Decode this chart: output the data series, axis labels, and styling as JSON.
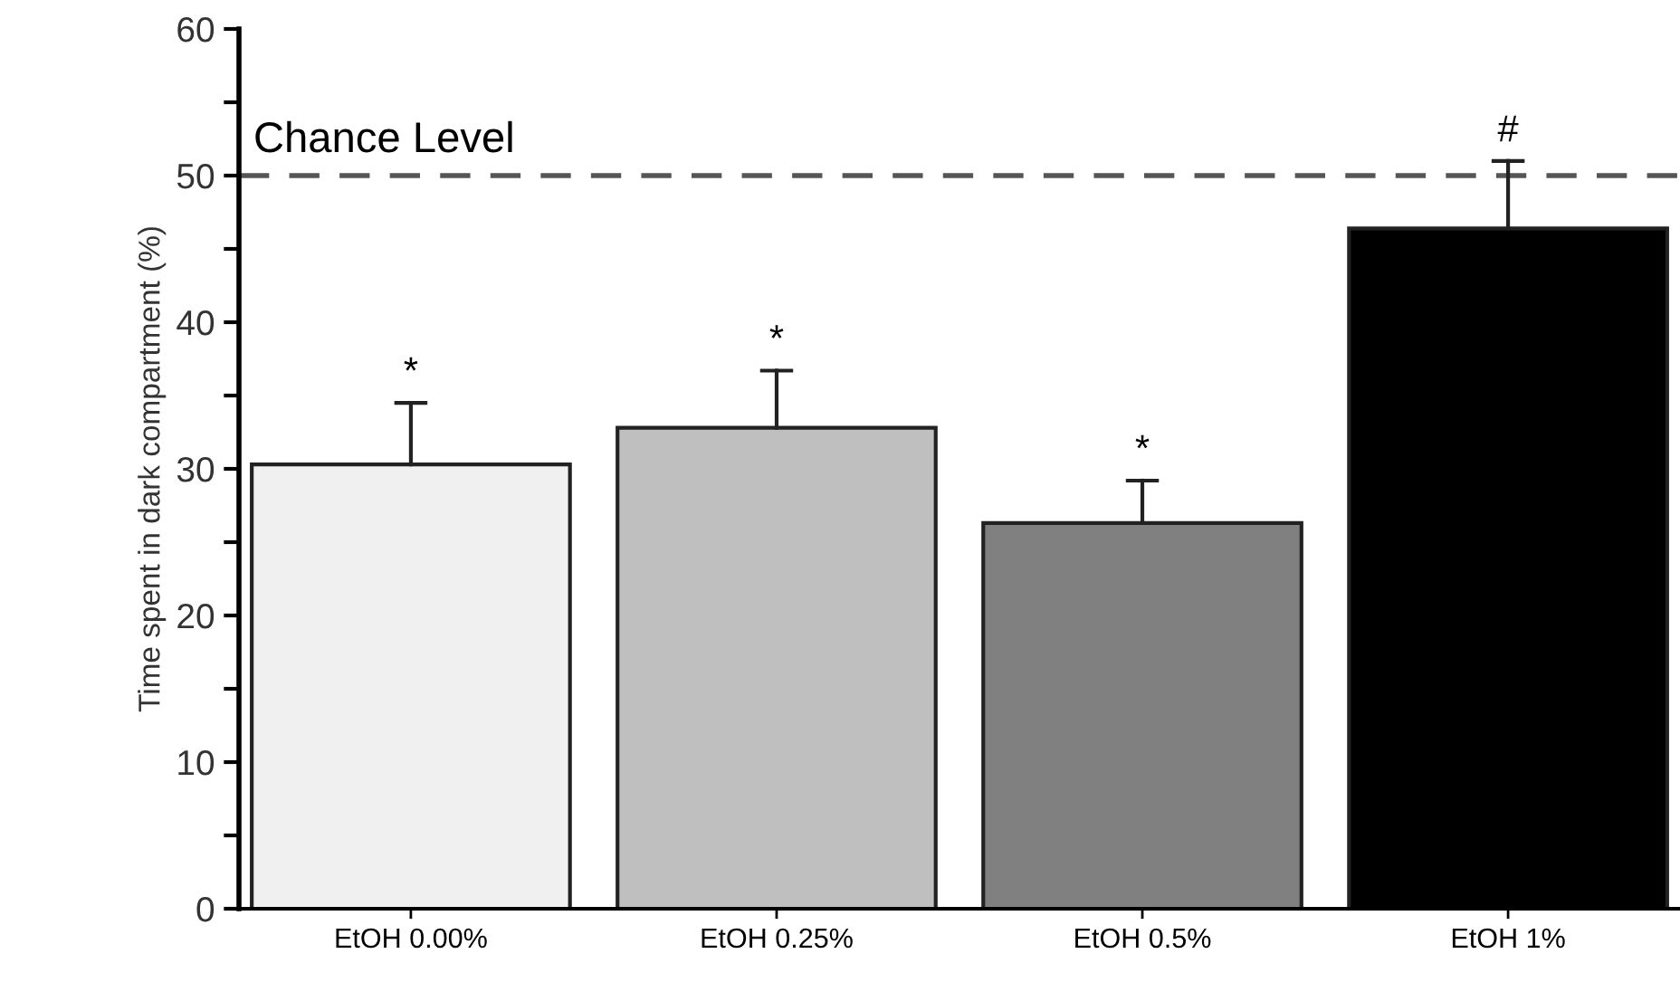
{
  "chart_data": {
    "type": "bar",
    "ylabel": "Time spent in dark compartment (%)",
    "categories": [
      "EtOH 0.00%",
      "EtOH 0.25%",
      "EtOH 0.5%",
      "EtOH 1%"
    ],
    "values": [
      30.3,
      32.8,
      26.3,
      46.4
    ],
    "colors": [
      "#f0f0f0",
      "#bfbfbf",
      "#808080",
      "#000000"
    ],
    "errors": [
      [
        30.3,
        34.5
      ],
      [
        32.8,
        36.7
      ],
      [
        26.3,
        29.2
      ],
      [
        46.4,
        51.0
      ]
    ],
    "ylim": [
      0,
      60
    ],
    "yticks": [
      0,
      {
        "value": 5,
        "label": null
      },
      10,
      {
        "value": 15,
        "label": null
      },
      20,
      {
        "value": 25,
        "label": null
      },
      30,
      {
        "value": 35,
        "label": null
      },
      40,
      {
        "value": 45,
        "label": null
      },
      50,
      {
        "value": 55,
        "label": null
      },
      60
    ],
    "ref_lines": [
      {
        "axis": "y",
        "value": 50,
        "label": "Chance Level",
        "color": "#555555",
        "line_style": "dashed"
      }
    ],
    "annotations": [
      {
        "text": "*",
        "x": "EtOH 0.00%",
        "y": 34.5
      },
      {
        "text": "*",
        "x": "EtOH 0.25%",
        "y": 36.7
      },
      {
        "text": "*",
        "x": "EtOH 0.5%",
        "y": 29.2
      },
      {
        "text": "#",
        "x": "EtOH 1%",
        "y": 51.0
      }
    ],
    "grid": false,
    "legend": false
  }
}
